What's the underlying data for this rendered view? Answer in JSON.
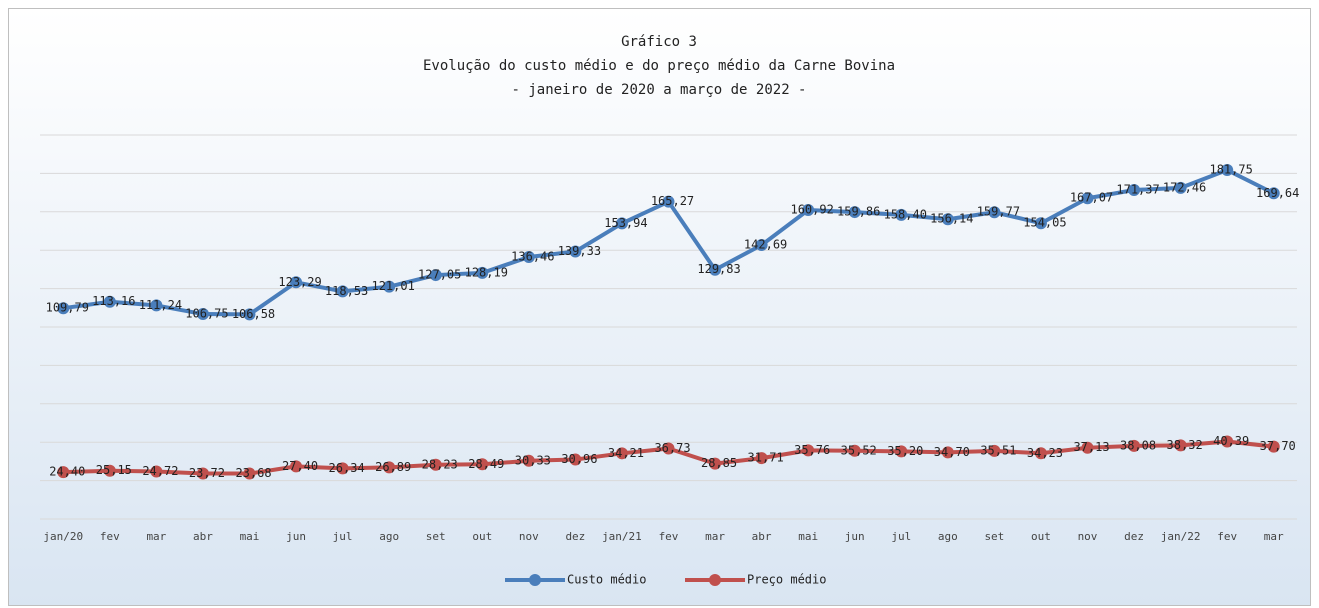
{
  "chart_data": {
    "type": "line",
    "title": [
      "Gráfico 3",
      "Evolução do custo médio e do preço médio da Carne Bovina",
      "- janeiro de 2020 a março de 2022 -"
    ],
    "categories": [
      "jan/20",
      "fev",
      "mar",
      "abr",
      "mai",
      "jun",
      "jul",
      "ago",
      "set",
      "out",
      "nov",
      "dez",
      "jan/21",
      "fev",
      "mar",
      "abr",
      "mai",
      "jun",
      "jul",
      "ago",
      "set",
      "out",
      "nov",
      "dez",
      "jan/22",
      "fev",
      "mar"
    ],
    "series": [
      {
        "name": "Custo médio",
        "color": "#4a7ebb",
        "values": [
          109.79,
          113.16,
          111.24,
          106.75,
          106.58,
          123.29,
          118.53,
          121.01,
          127.05,
          128.19,
          136.46,
          139.33,
          153.94,
          165.27,
          129.83,
          142.69,
          160.92,
          159.86,
          158.4,
          156.14,
          159.77,
          154.05,
          167.07,
          171.37,
          172.46,
          181.75,
          169.64
        ],
        "value_labels": [
          "109,79",
          "113,16",
          "111,24",
          "106,75",
          "106,58",
          "123,29",
          "118,53",
          "121,01",
          "127,05",
          "128,19",
          "136,46",
          "139,33",
          "153,94",
          "165,27",
          "129,83",
          "142,69",
          "160,92",
          "159,86",
          "158,40",
          "156,14",
          "159,77",
          "154,05",
          "167,07",
          "171,37",
          "172,46",
          "181,75",
          "169,64"
        ]
      },
      {
        "name": "Preço médio",
        "color": "#c0504d",
        "values": [
          24.4,
          25.15,
          24.72,
          23.72,
          23.68,
          27.4,
          26.34,
          26.89,
          28.23,
          28.49,
          30.33,
          30.96,
          34.21,
          36.73,
          28.85,
          31.71,
          35.76,
          35.52,
          35.2,
          34.7,
          35.51,
          34.23,
          37.13,
          38.08,
          38.32,
          40.39,
          37.7
        ],
        "value_labels": [
          "24,40",
          "25,15",
          "24,72",
          "23,72",
          "23,68",
          "27,40",
          "26,34",
          "26,89",
          "28,23",
          "28,49",
          "30,33",
          "30,96",
          "34,21",
          "36,73",
          "28,85",
          "31,71",
          "35,76",
          "35,52",
          "35,20",
          "34,70",
          "35,51",
          "34,23",
          "37,13",
          "38,08",
          "38,32",
          "40,39",
          "37,70"
        ]
      }
    ],
    "ylim": [
      0,
      200
    ],
    "yticks": [
      0,
      20,
      40,
      60,
      80,
      100,
      120,
      140,
      160,
      180,
      200
    ],
    "grid": true,
    "legend": "bottom"
  }
}
